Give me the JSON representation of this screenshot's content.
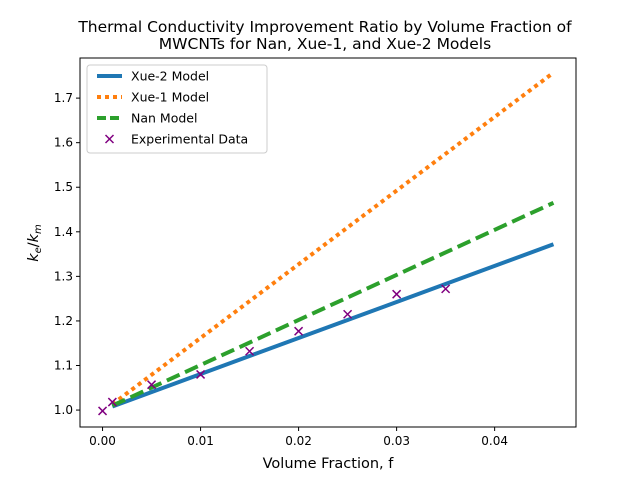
{
  "chart_data": {
    "type": "line",
    "title": "Thermal Conductivity Improvement Ratio by Volume Fraction of MWCNTs for Nan, Xue-1, and Xue-2 Models",
    "title_lines": [
      "Thermal Conductivity Improvement Ratio by Volume Fraction of",
      "MWCNTs for Nan, Xue-1, and Xue-2 Models"
    ],
    "xlabel": "Volume Fraction, f",
    "ylabel": {
      "k": "k",
      "e": "e",
      "slash": "/",
      "m": "m"
    },
    "xlim": [
      -0.0023,
      0.0483
    ],
    "ylim": [
      0.962,
      1.79
    ],
    "xticks": [
      0.0,
      0.01,
      0.02,
      0.03,
      0.04
    ],
    "xtick_labels": [
      "0.00",
      "0.01",
      "0.02",
      "0.03",
      "0.04"
    ],
    "yticks": [
      1.0,
      1.1,
      1.2,
      1.3,
      1.4,
      1.5,
      1.6,
      1.7
    ],
    "ytick_labels": [
      "1.0",
      "1.1",
      "1.2",
      "1.3",
      "1.4",
      "1.5",
      "1.6",
      "1.7"
    ],
    "grid": false,
    "legend_position": "upper-left",
    "series": [
      {
        "name": "Xue-2 Model",
        "style": "solid",
        "color": "#1f77b4",
        "x": [
          0.001,
          0.046
        ],
        "y": [
          1.008,
          1.372
        ]
      },
      {
        "name": "Xue-1 Model",
        "style": "dotted",
        "color": "#ff7f0e",
        "x": [
          0.001,
          0.046
        ],
        "y": [
          1.013,
          1.757
        ]
      },
      {
        "name": "Nan Model",
        "style": "dashed",
        "color": "#2ca02c",
        "x": [
          0.001,
          0.046
        ],
        "y": [
          1.01,
          1.465
        ]
      },
      {
        "name": "Experimental Data",
        "style": "scatter",
        "marker": "x",
        "color": "#800080",
        "x": [
          0.0,
          0.001,
          0.005,
          0.01,
          0.015,
          0.02,
          0.025,
          0.03,
          0.035
        ],
        "y": [
          0.998,
          1.018,
          1.057,
          1.08,
          1.132,
          1.177,
          1.215,
          1.26,
          1.272
        ]
      }
    ]
  }
}
